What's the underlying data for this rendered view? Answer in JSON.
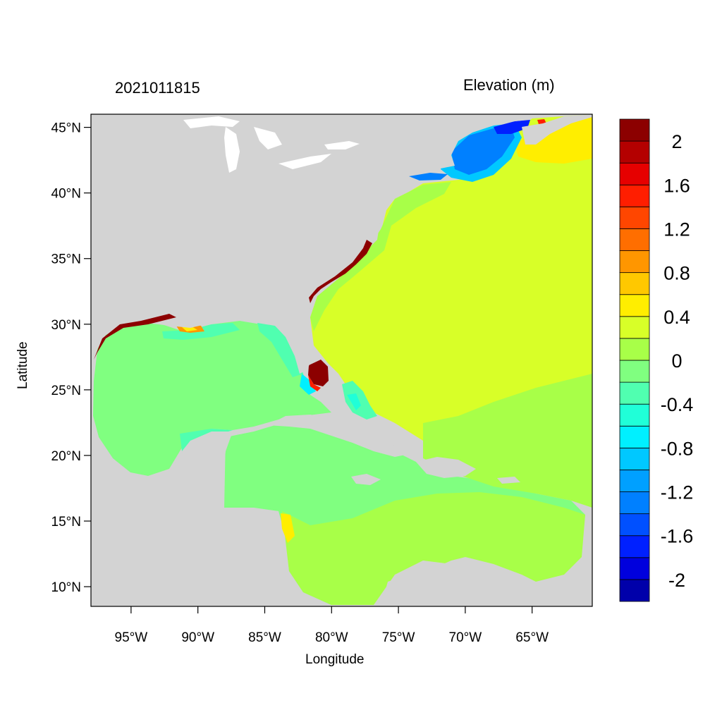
{
  "title_left": "2021011815",
  "title_right": "Elevation (m)",
  "xlabel": "Longitude",
  "ylabel": "Latitude",
  "map": {
    "lon_range": [
      -98,
      -60.5
    ],
    "lat_range": [
      8.5,
      46
    ],
    "x_ticks": [
      {
        "value": -95,
        "label": "95°W"
      },
      {
        "value": -90,
        "label": "90°W"
      },
      {
        "value": -85,
        "label": "85°W"
      },
      {
        "value": -80,
        "label": "80°W"
      },
      {
        "value": -75,
        "label": "75°W"
      },
      {
        "value": -70,
        "label": "70°W"
      },
      {
        "value": -65,
        "label": "65°W"
      }
    ],
    "y_ticks": [
      {
        "value": 45,
        "label": "45°N"
      },
      {
        "value": 40,
        "label": "40°N"
      },
      {
        "value": 35,
        "label": "35°N"
      },
      {
        "value": 30,
        "label": "30°N"
      },
      {
        "value": 25,
        "label": "25°N"
      },
      {
        "value": 20,
        "label": "20°N"
      },
      {
        "value": 15,
        "label": "15°N"
      },
      {
        "value": 10,
        "label": "10°N"
      }
    ]
  },
  "colorbar": {
    "levels": [
      -2.2,
      -2.0,
      -1.8,
      -1.6,
      -1.4,
      -1.2,
      -1.0,
      -0.8,
      -0.6,
      -0.4,
      -0.2,
      0.0,
      0.2,
      0.4,
      0.6,
      0.8,
      1.0,
      1.2,
      1.4,
      1.6,
      1.8,
      2.0,
      2.2
    ],
    "colors": [
      "#0000aa",
      "#0000dd",
      "#0020ff",
      "#0050ff",
      "#0080ff",
      "#00a0ff",
      "#00c8ff",
      "#00f0ff",
      "#20ffd8",
      "#50ffb0",
      "#80ff80",
      "#a8ff48",
      "#d8ff28",
      "#ffee00",
      "#ffc800",
      "#ff9600",
      "#ff6e00",
      "#ff4600",
      "#ff1e00",
      "#e60000",
      "#b40000",
      "#8c0000"
    ],
    "labels": [
      {
        "value": 2.0,
        "label": "2"
      },
      {
        "value": 1.6,
        "label": "1.6"
      },
      {
        "value": 1.2,
        "label": "1.2"
      },
      {
        "value": 0.8,
        "label": "0.8"
      },
      {
        "value": 0.4,
        "label": "0.4"
      },
      {
        "value": 0.0,
        "label": "0"
      },
      {
        "value": -0.4,
        "label": "-0.4"
      },
      {
        "value": -0.8,
        "label": "-0.8"
      },
      {
        "value": -1.2,
        "label": "-1.2"
      },
      {
        "value": -1.6,
        "label": "-1.6"
      },
      {
        "value": -2.0,
        "label": "-2"
      }
    ]
  },
  "colors": {
    "land": "#d3d3d3",
    "lakes": "#ffffff",
    "gulf_caribbean": "#80ff80",
    "atlantic": "#d8ff28",
    "gulf_maine": "#0050ff",
    "florida_surge": "#8c0000"
  }
}
